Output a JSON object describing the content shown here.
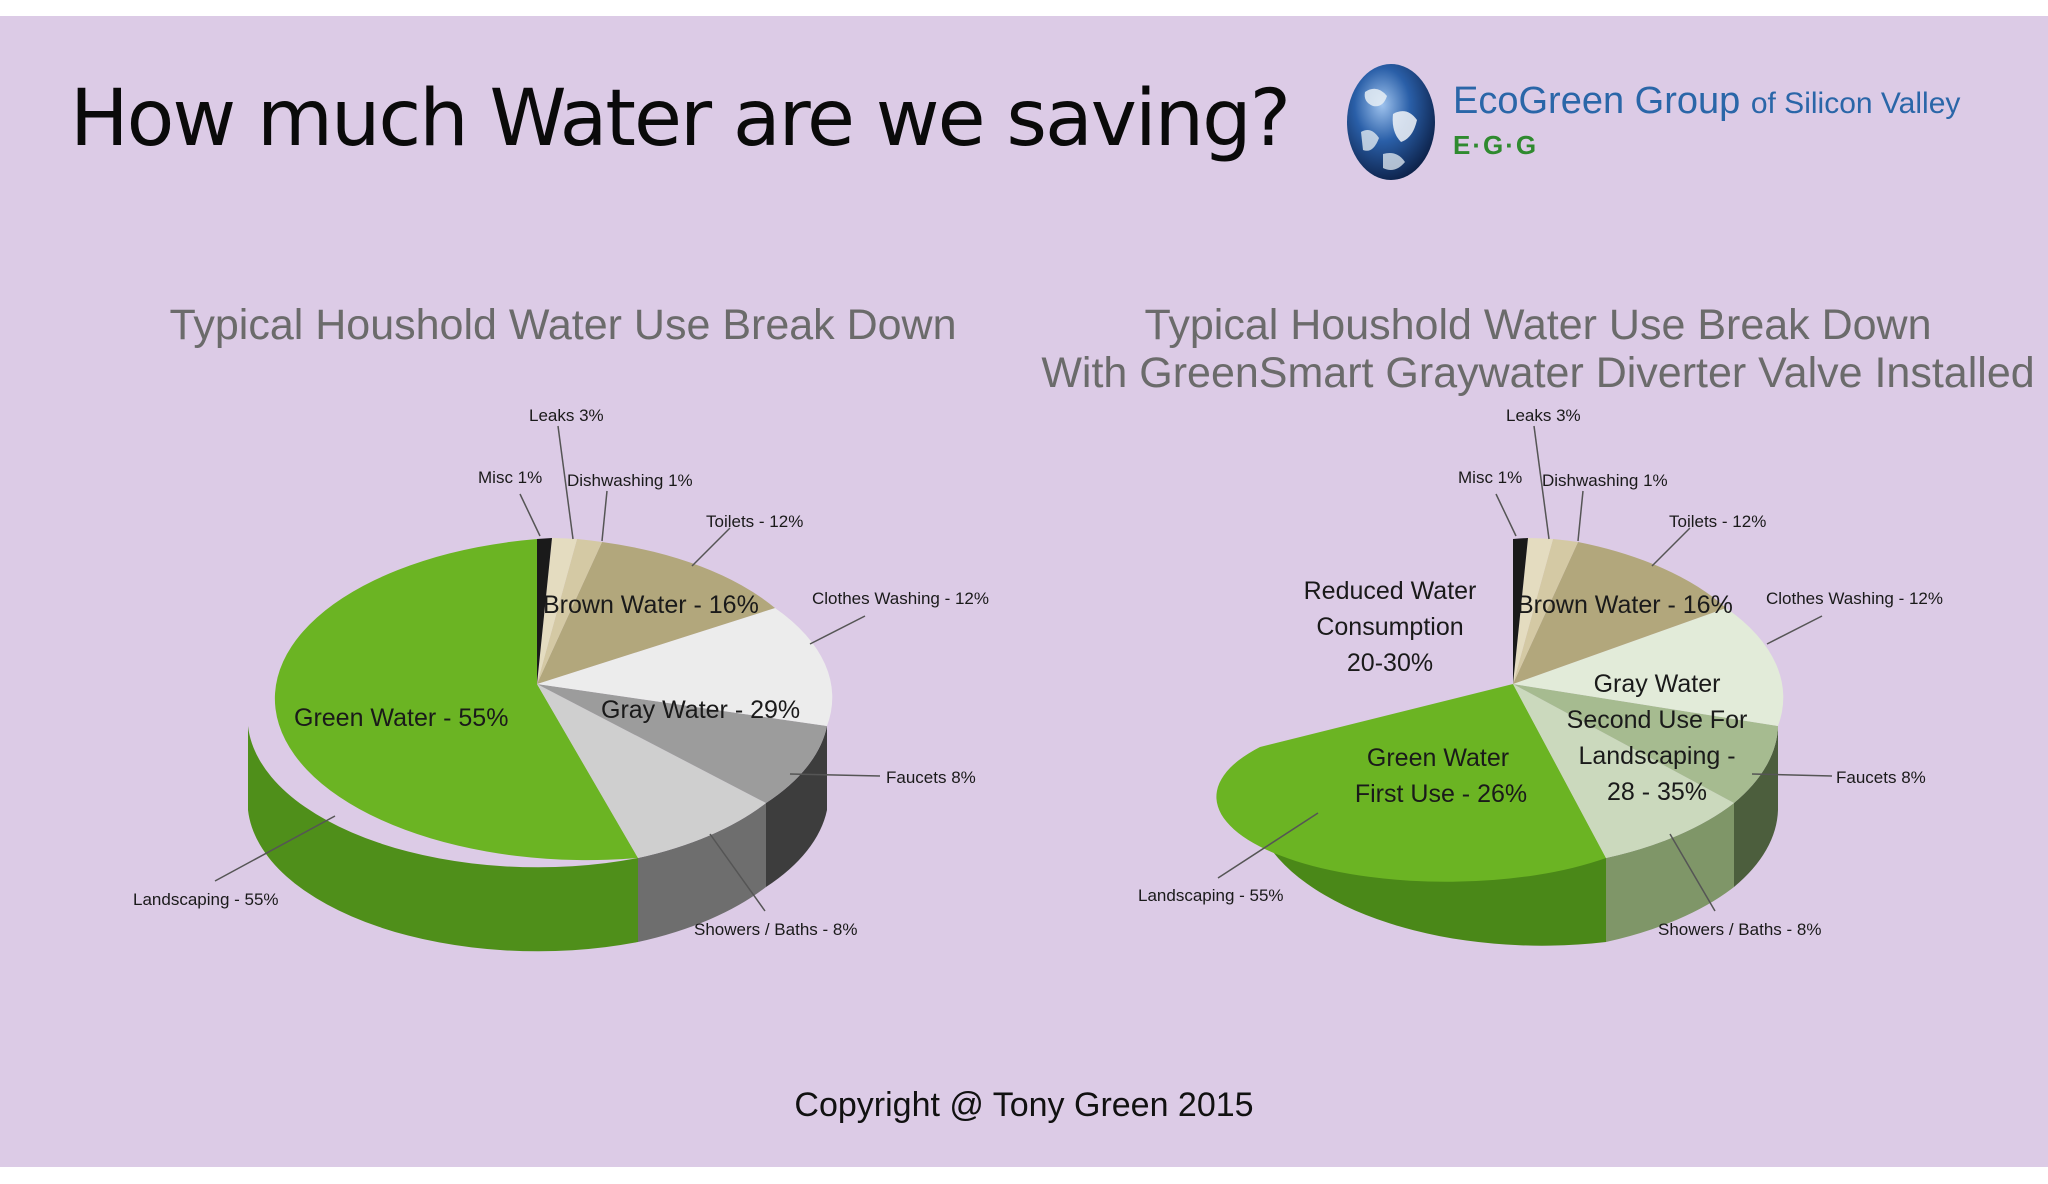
{
  "slide": {
    "title": "How much Water are we saving?",
    "logo": {
      "name_main": "EcoGreen Group",
      "name_suffix": "of Silicon Valley",
      "abbr": "E·G·G"
    },
    "copyright": "Copyright @ Tony Green 2015"
  },
  "colors": {
    "background": "#dccbe6",
    "green": "#6bb423",
    "brown": "#b2a77c",
    "light_gray": "#e8e8e8",
    "mid_gray": "#bdbdbd",
    "dark_gray": "#999999",
    "misc": "#1a1a1a",
    "tan": "#d8d0b4",
    "gray_water_green": "#d7e4cd",
    "gray_water_green_dark": "#a9bd95"
  },
  "chart_data": [
    {
      "type": "pie",
      "title": "Typical Houshold Water Use Break Down",
      "slices": [
        {
          "label": "Misc 1%",
          "value": 1,
          "color": "#1a1a1a"
        },
        {
          "label": "Leaks 3%",
          "value": 3,
          "color": "#e4dcc0"
        },
        {
          "label": "Dishwashing 1%",
          "value": 1,
          "color": "#d4c9a4"
        },
        {
          "label": "Toilets - 12%",
          "value": 12,
          "color": "#b2a77c"
        },
        {
          "label": "Clothes Washing - 12%",
          "value": 12,
          "color": "#ececec"
        },
        {
          "label": "Faucets 8%",
          "value": 8,
          "color": "#9c9c9c"
        },
        {
          "label": "Showers / Baths - 8%",
          "value": 8,
          "color": "#cfcfcf"
        },
        {
          "label": "Landscaping - 55%",
          "value": 55,
          "color": "#6bb423"
        }
      ],
      "groups": [
        {
          "label": "Brown Water - 16%"
        },
        {
          "label": "Gray Water - 29%"
        },
        {
          "label": "Green Water - 55%"
        }
      ]
    },
    {
      "type": "pie",
      "title_lines": [
        "Typical Houshold Water Use Break Down",
        "With GreenSmart Graywater Diverter Valve Installed"
      ],
      "slices": [
        {
          "label": "Misc 1%",
          "value": 1,
          "color": "#1a1a1a"
        },
        {
          "label": "Leaks 3%",
          "value": 3,
          "color": "#e4dcc0"
        },
        {
          "label": "Dishwashing 1%",
          "value": 1,
          "color": "#d4c9a4"
        },
        {
          "label": "Toilets - 12%",
          "value": 12,
          "color": "#b2a77c"
        },
        {
          "label": "Clothes Washing - 12%",
          "value": 12,
          "color": "#e2ebd9"
        },
        {
          "label": "Faucets 8%",
          "value": 8,
          "color": "#a6bb90"
        },
        {
          "label": "Showers / Baths - 8%",
          "value": 8,
          "color": "#cbd9bd"
        },
        {
          "label": "Landscaping - 55%",
          "value": 55,
          "color": "#6bb423"
        }
      ],
      "groups": [
        {
          "label": "Brown Water - 16%"
        },
        {
          "label_lines": [
            "Gray Water",
            "Second Use For",
            "Landscaping -",
            "28 - 35%"
          ]
        },
        {
          "label_lines": [
            "Green Water",
            "First Use - 26%"
          ]
        }
      ],
      "annotation_lines": [
        "Reduced Water",
        "Consumption",
        "20-30%"
      ]
    }
  ]
}
